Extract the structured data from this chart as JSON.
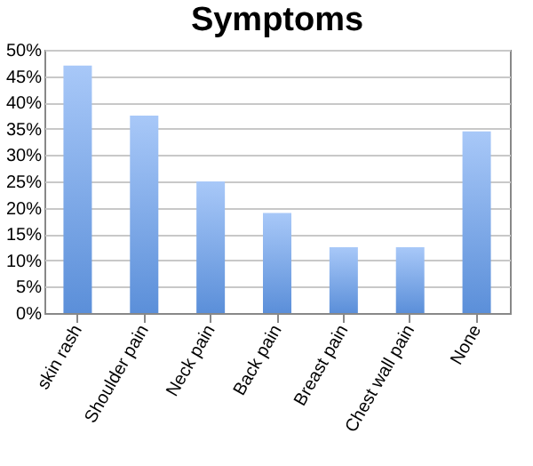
{
  "chart_data": {
    "type": "bar",
    "title": "Symptoms",
    "categories": [
      "skin rash",
      "Shoulder pain",
      "Neck pain",
      "Back pain",
      "Breast pain",
      "Chest wall pain",
      "None"
    ],
    "values": [
      47,
      37.5,
      25,
      19,
      12.5,
      12.5,
      34.5
    ],
    "color": "#5b8fd9",
    "ylim": [
      0,
      50
    ],
    "yticks": [
      {
        "value": 0,
        "label": "0%"
      },
      {
        "value": 5,
        "label": "5%"
      },
      {
        "value": 10,
        "label": "10%"
      },
      {
        "value": 15,
        "label": "15%"
      },
      {
        "value": 20,
        "label": "20%"
      },
      {
        "value": 25,
        "label": "25%"
      },
      {
        "value": 30,
        "label": "30%"
      },
      {
        "value": 35,
        "label": "35%"
      },
      {
        "value": 40,
        "label": "40%"
      },
      {
        "value": 45,
        "label": "45%"
      },
      {
        "value": 50,
        "label": "50%"
      }
    ],
    "grid": "y"
  }
}
